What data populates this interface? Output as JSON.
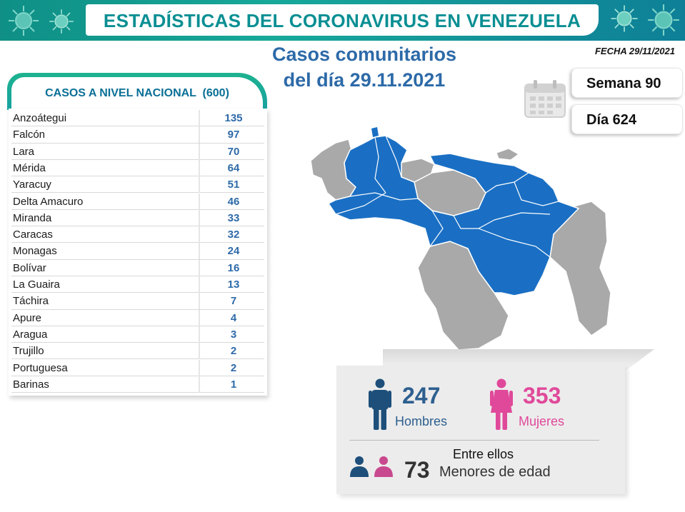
{
  "header": {
    "title": "ESTADÍSTICAS DEL CORONAVIRUS EN VENEZUELA",
    "date_label": "FECHA 29/11/2021"
  },
  "headline": {
    "line1": "Casos comunitarios",
    "line2": "del día 29.11.2021"
  },
  "week": {
    "label": "Semana 90"
  },
  "day": {
    "label": "Día 624"
  },
  "table": {
    "title": "CASOS A NIVEL NACIONAL  (600)",
    "rows": [
      {
        "state": "Anzoátegui",
        "cases": "135"
      },
      {
        "state": "Falcón",
        "cases": "97"
      },
      {
        "state": "Lara",
        "cases": "70"
      },
      {
        "state": "Mérida",
        "cases": "64"
      },
      {
        "state": "Yaracuy",
        "cases": "51"
      },
      {
        "state": "Delta Amacuro",
        "cases": "46"
      },
      {
        "state": "Miranda",
        "cases": "33"
      },
      {
        "state": "Caracas",
        "cases": "32"
      },
      {
        "state": "Monagas",
        "cases": "24"
      },
      {
        "state": "Bolívar",
        "cases": "16"
      },
      {
        "state": "La Guaira",
        "cases": "13"
      },
      {
        "state": "Táchira",
        "cases": "7"
      },
      {
        "state": "Apure",
        "cases": "4"
      },
      {
        "state": "Aragua",
        "cases": "3"
      },
      {
        "state": "Trujillo",
        "cases": "2"
      },
      {
        "state": "Portuguesa",
        "cases": "2"
      },
      {
        "state": "Barinas",
        "cases": "1"
      }
    ]
  },
  "stats": {
    "men": {
      "value": "247",
      "label": "Hombres"
    },
    "women": {
      "value": "353",
      "label": "Mujeres"
    },
    "minors": {
      "intro": "Entre ellos",
      "value": "73",
      "label": "Menores de edad"
    }
  },
  "colors": {
    "accent_teal": "#0a8f93",
    "map_affected": "#1a6fc4",
    "map_other": "#a9a9a9",
    "men": "#2d5f8f",
    "women": "#e0499a"
  },
  "icons": [
    "virus-icon",
    "calendar-icon",
    "man-icon",
    "woman-icon",
    "child-boy-icon",
    "child-girl-icon"
  ]
}
